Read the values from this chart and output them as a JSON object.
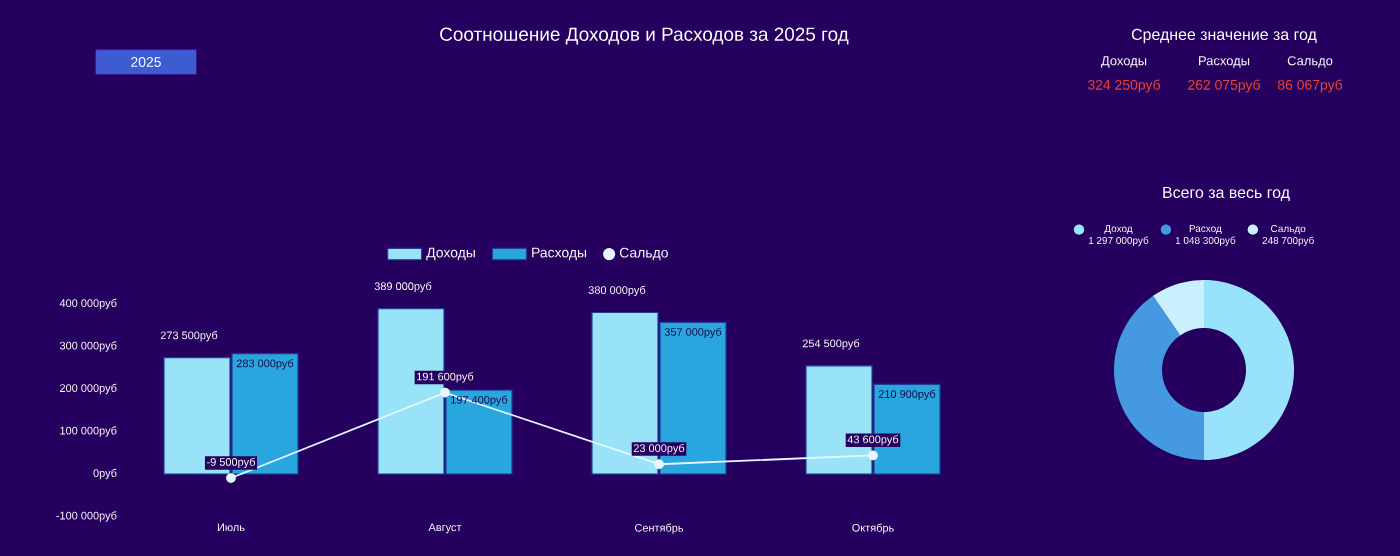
{
  "chart_data": [
    {
      "type": "bar",
      "title": "Соотношение Доходов и Расходов за 2025 год",
      "annotations": [
        "2025"
      ],
      "categories": [
        "Июль",
        "Август",
        "Сентябрь",
        "Октябрь"
      ],
      "series": [
        {
          "name": "Доходы",
          "color": "#99e3f9",
          "values": [
            273500,
            389000,
            380000,
            254500
          ],
          "value_labels": [
            "273 500руб",
            "389 000руб",
            "380 000руб",
            "254 500руб"
          ]
        },
        {
          "name": "Расходы",
          "color": "#29a6de",
          "values": [
            283000,
            197400,
            357000,
            210900
          ],
          "value_labels": [
            "283 000руб",
            "197 400руб",
            "357 000руб",
            "210 900руб"
          ]
        },
        {
          "name": "Сальдо",
          "type": "line",
          "color": "#e6f6ff",
          "marker": "circle",
          "line_style": "solid",
          "values": [
            -9500,
            191600,
            23000,
            43600
          ],
          "value_labels": [
            "-9 500руб",
            "191 600руб",
            "23 000руб",
            "43 600руб"
          ]
        }
      ],
      "ylim": [
        -100000,
        400000
      ],
      "yticks": [
        {
          "value": -100000,
          "label": "-100 000руб"
        },
        {
          "value": 0,
          "label": "0руб"
        },
        {
          "value": 100000,
          "label": "100 000руб"
        },
        {
          "value": 200000,
          "label": "200 000руб"
        },
        {
          "value": 300000,
          "label": "300 000руб"
        },
        {
          "value": 400000,
          "label": "400 000руб"
        }
      ],
      "legend": "top",
      "grid": false
    },
    {
      "type": "other",
      "title": "Среднее значение за год",
      "annotations": [
        "Доходы",
        "Расходы",
        "Сальдо",
        "324 250руб",
        "262 075руб",
        "86 067руб"
      ]
    },
    {
      "type": "donut",
      "title": "Всего за весь год",
      "categories": [
        "Доход",
        "Расход",
        "Сальдо"
      ],
      "values": [
        1297000,
        1048300,
        248700
      ],
      "value_labels": [
        "1 297 000руб",
        "1 048 300руб",
        "248 700руб"
      ],
      "colors": [
        "#99e2fb",
        "#4499e0",
        "#c8f0ff"
      ],
      "legend": "top"
    }
  ]
}
